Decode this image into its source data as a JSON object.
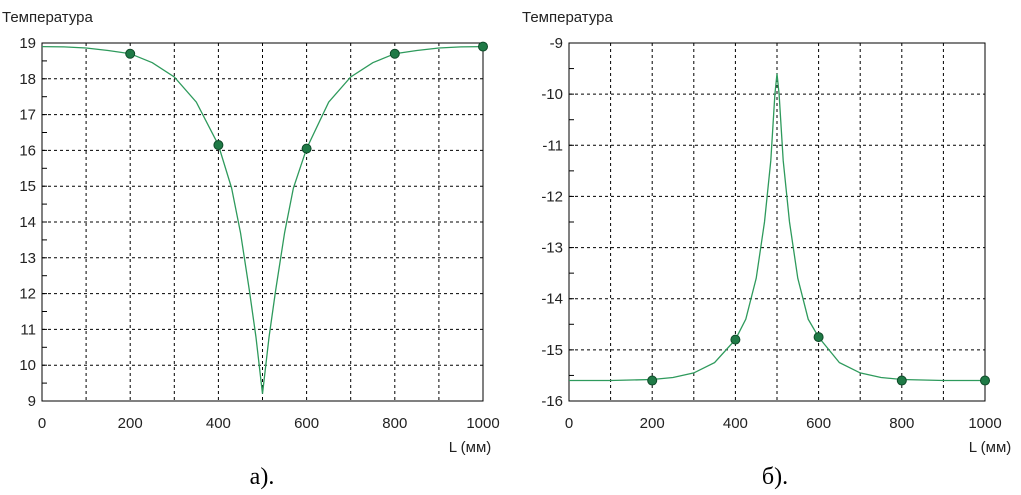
{
  "chart_data": [
    {
      "type": "line",
      "caption": "а).",
      "ylabel": "Температура",
      "xlabel": "L (мм)",
      "xlim": [
        0,
        1000
      ],
      "ylim": [
        9,
        19
      ],
      "x_ticks": [
        0,
        200,
        400,
        600,
        800,
        1000
      ],
      "y_ticks": [
        9,
        10,
        11,
        12,
        13,
        14,
        15,
        16,
        17,
        18,
        19
      ],
      "grid": true,
      "line_color": "#2e9a5c",
      "marker_color": "#1f7a46",
      "curve": [
        [
          0,
          18.9
        ],
        [
          50,
          18.89
        ],
        [
          100,
          18.86
        ],
        [
          150,
          18.79
        ],
        [
          200,
          18.7
        ],
        [
          250,
          18.45
        ],
        [
          300,
          18.05
        ],
        [
          350,
          17.35
        ],
        [
          400,
          16.15
        ],
        [
          430,
          14.95
        ],
        [
          450,
          13.7
        ],
        [
          470,
          12.1
        ],
        [
          485,
          10.8
        ],
        [
          500,
          9.2
        ],
        [
          515,
          10.8
        ],
        [
          530,
          12.1
        ],
        [
          550,
          13.7
        ],
        [
          570,
          14.95
        ],
        [
          600,
          16.05
        ],
        [
          650,
          17.35
        ],
        [
          700,
          18.05
        ],
        [
          750,
          18.45
        ],
        [
          800,
          18.7
        ],
        [
          850,
          18.79
        ],
        [
          900,
          18.86
        ],
        [
          950,
          18.89
        ],
        [
          1000,
          18.9
        ]
      ],
      "markers": [
        [
          200,
          18.7
        ],
        [
          400,
          16.15
        ],
        [
          600,
          16.05
        ],
        [
          800,
          18.7
        ],
        [
          1000,
          18.9
        ]
      ]
    },
    {
      "type": "line",
      "caption": "б).",
      "ylabel": "Температура",
      "xlabel": "L (мм)",
      "xlim": [
        0,
        1000
      ],
      "ylim": [
        -16,
        -9
      ],
      "x_ticks": [
        0,
        200,
        400,
        600,
        800,
        1000
      ],
      "y_ticks": [
        -16,
        -15,
        -14,
        -13,
        -12,
        -11,
        -10,
        -9
      ],
      "grid": true,
      "line_color": "#2e9a5c",
      "marker_color": "#1f7a46",
      "curve": [
        [
          0,
          -15.6
        ],
        [
          100,
          -15.6
        ],
        [
          200,
          -15.58
        ],
        [
          250,
          -15.54
        ],
        [
          300,
          -15.45
        ],
        [
          350,
          -15.25
        ],
        [
          400,
          -14.8
        ],
        [
          425,
          -14.4
        ],
        [
          450,
          -13.6
        ],
        [
          470,
          -12.5
        ],
        [
          485,
          -11.3
        ],
        [
          495,
          -10.0
        ],
        [
          500,
          -9.6
        ],
        [
          505,
          -10.0
        ],
        [
          515,
          -11.3
        ],
        [
          530,
          -12.5
        ],
        [
          550,
          -13.6
        ],
        [
          575,
          -14.4
        ],
        [
          600,
          -14.75
        ],
        [
          650,
          -15.25
        ],
        [
          700,
          -15.45
        ],
        [
          750,
          -15.54
        ],
        [
          800,
          -15.58
        ],
        [
          900,
          -15.6
        ],
        [
          1000,
          -15.6
        ]
      ],
      "markers": [
        [
          200,
          -15.6
        ],
        [
          400,
          -14.8
        ],
        [
          600,
          -14.75
        ],
        [
          800,
          -15.6
        ],
        [
          1000,
          -15.6
        ]
      ]
    }
  ]
}
